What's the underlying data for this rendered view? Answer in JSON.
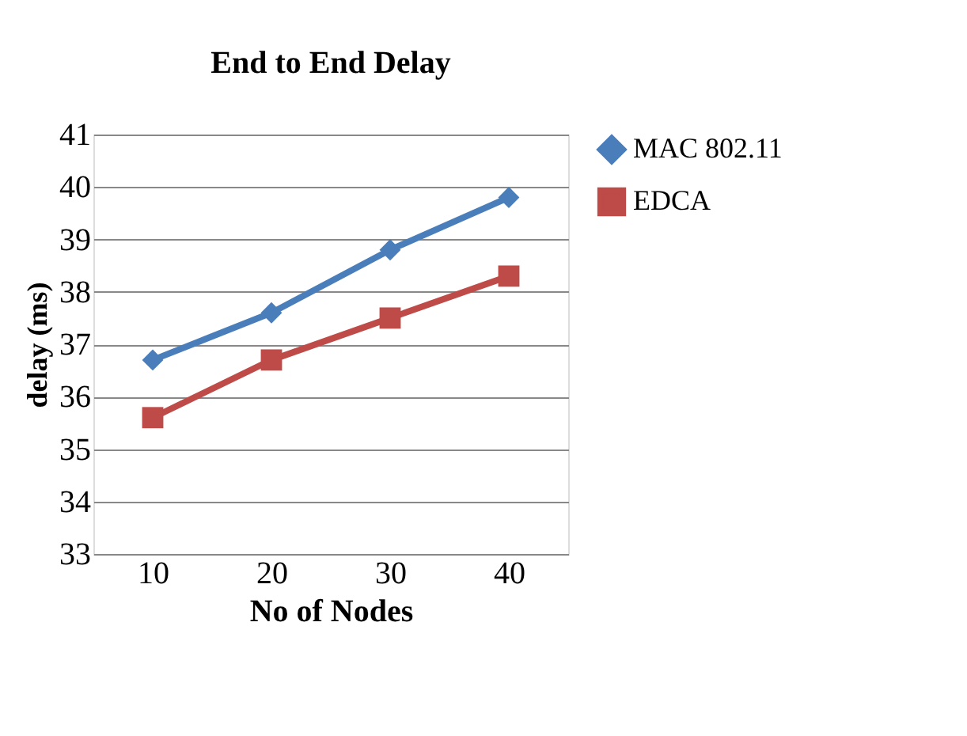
{
  "chart_data": {
    "type": "line",
    "title": "End to End  Delay",
    "xlabel": "No of Nodes",
    "ylabel": "delay  (ms)",
    "categories": [
      "10",
      "20",
      "30",
      "40"
    ],
    "series": [
      {
        "name": "MAC 802.11",
        "color": "#4a7ebb",
        "marker": "diamond",
        "values": [
          36.7,
          37.6,
          38.8,
          39.8
        ]
      },
      {
        "name": "EDCA",
        "color": "#be4b48",
        "marker": "square",
        "values": [
          35.6,
          36.7,
          37.5,
          38.3
        ]
      }
    ],
    "ylim": [
      33,
      41
    ],
    "yticks": [
      33,
      34,
      35,
      36,
      37,
      38,
      39,
      40,
      41
    ],
    "grid": "y",
    "legend": "right",
    "line_style": "solid"
  }
}
